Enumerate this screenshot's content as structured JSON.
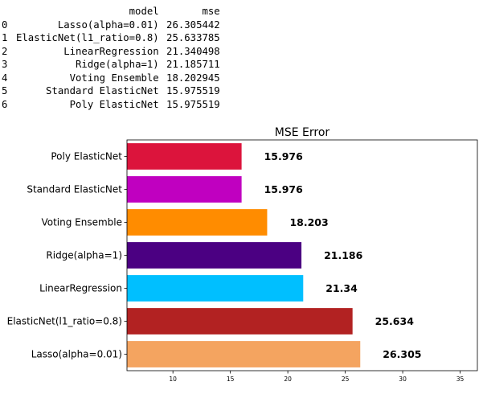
{
  "table": {
    "columns": [
      "model",
      "mse"
    ],
    "rows": [
      {
        "index": "0",
        "model": "Lasso(alpha=0.01)",
        "mse": "26.305442"
      },
      {
        "index": "1",
        "model": "ElasticNet(l1_ratio=0.8)",
        "mse": "25.633785"
      },
      {
        "index": "2",
        "model": "LinearRegression",
        "mse": "21.340498"
      },
      {
        "index": "3",
        "model": "Ridge(alpha=1)",
        "mse": "21.185711"
      },
      {
        "index": "4",
        "model": "Voting Ensemble",
        "mse": "18.202945"
      },
      {
        "index": "5",
        "model": "Standard ElasticNet",
        "mse": "15.975519"
      },
      {
        "index": "6",
        "model": "Poly ElasticNet",
        "mse": "15.975519"
      }
    ]
  },
  "chart_data": {
    "type": "bar",
    "orientation": "horizontal",
    "title": "MSE Error",
    "xlabel": "",
    "ylabel": "",
    "xlim": [
      6,
      36.5
    ],
    "xticks": [
      10,
      15,
      20,
      25,
      30,
      35
    ],
    "grid": false,
    "categories": [
      "Lasso(alpha=0.01)",
      "ElasticNet(l1_ratio=0.8)",
      "LinearRegression",
      "Ridge(alpha=1)",
      "Voting Ensemble",
      "Standard ElasticNet",
      "Poly ElasticNet"
    ],
    "values": [
      26.305,
      25.634,
      21.34,
      21.186,
      18.203,
      15.976,
      15.976
    ],
    "value_labels": [
      "26.305",
      "25.634",
      "21.34",
      "21.186",
      "18.203",
      "15.976",
      "15.976"
    ],
    "colors": [
      "#f4a460",
      "#b22222",
      "#00bfff",
      "#4b0082",
      "#ff8c00",
      "#c000c0",
      "#dc143c"
    ]
  }
}
